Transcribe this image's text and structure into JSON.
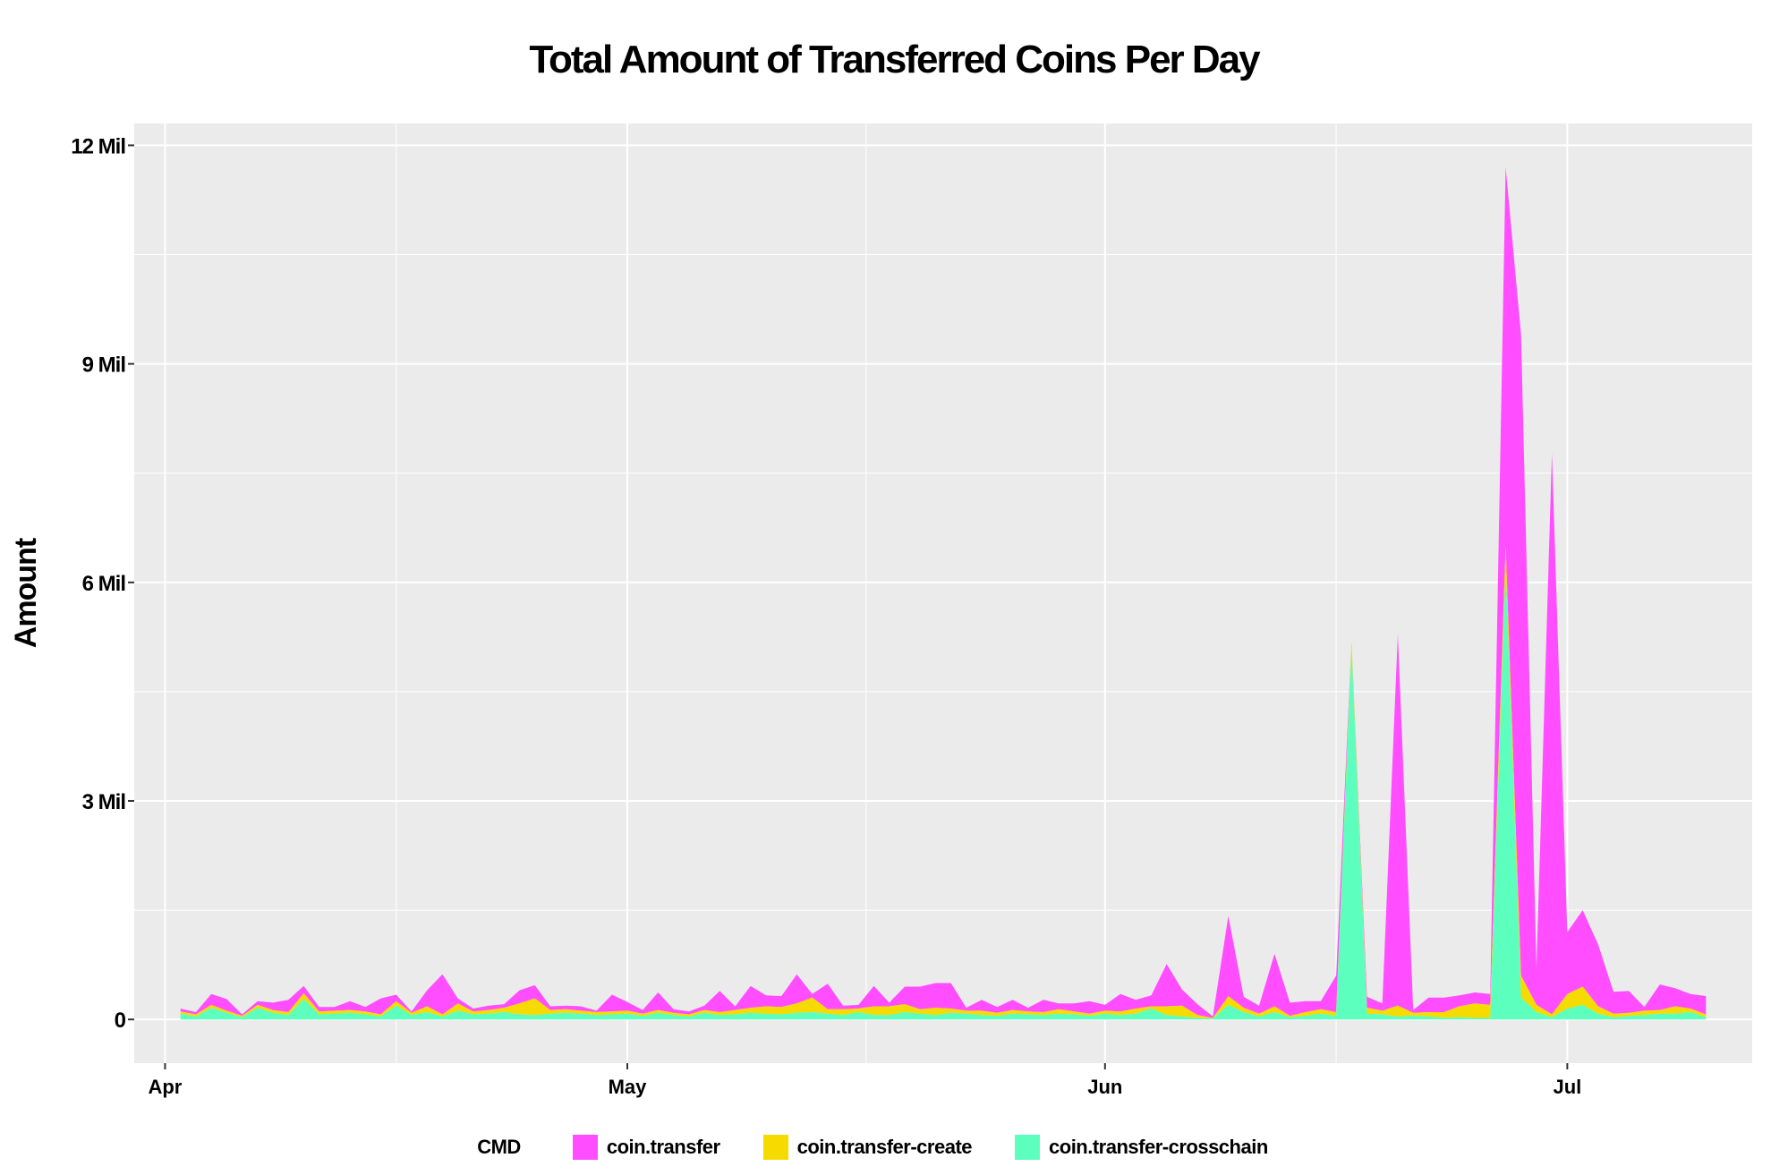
{
  "chart_data": {
    "type": "area",
    "stacked": true,
    "title": "Total Amount of Transferred Coins Per Day",
    "xlabel": "",
    "ylabel": "Amount",
    "x_tick_labels": [
      "Apr",
      "May",
      "Jun",
      "Jul"
    ],
    "x_tick_dates": [
      "2023-04-01",
      "2023-05-01",
      "2023-06-01",
      "2023-07-01"
    ],
    "x_range": [
      "2023-03-30",
      "2023-07-13"
    ],
    "y_tick_labels": [
      "0",
      "3 Mil",
      "6 Mil",
      "9 Mil",
      "12 Mil"
    ],
    "y_tick_values": [
      0,
      3000000,
      6000000,
      9000000,
      12000000
    ],
    "ylim": [
      -600000,
      12300000
    ],
    "grid": true,
    "legend_position": "bottom",
    "legend_title": "CMD",
    "x": [
      "2023-04-02",
      "2023-04-03",
      "2023-04-04",
      "2023-04-05",
      "2023-04-06",
      "2023-04-07",
      "2023-04-08",
      "2023-04-09",
      "2023-04-10",
      "2023-04-11",
      "2023-04-12",
      "2023-04-13",
      "2023-04-14",
      "2023-04-15",
      "2023-04-16",
      "2023-04-17",
      "2023-04-18",
      "2023-04-19",
      "2023-04-20",
      "2023-04-21",
      "2023-04-22",
      "2023-04-23",
      "2023-04-24",
      "2023-04-25",
      "2023-04-26",
      "2023-04-27",
      "2023-04-28",
      "2023-04-29",
      "2023-04-30",
      "2023-05-01",
      "2023-05-02",
      "2023-05-03",
      "2023-05-04",
      "2023-05-05",
      "2023-05-06",
      "2023-05-07",
      "2023-05-08",
      "2023-05-09",
      "2023-05-10",
      "2023-05-11",
      "2023-05-12",
      "2023-05-13",
      "2023-05-14",
      "2023-05-15",
      "2023-05-16",
      "2023-05-17",
      "2023-05-18",
      "2023-05-19",
      "2023-05-20",
      "2023-05-21",
      "2023-05-22",
      "2023-05-23",
      "2023-05-24",
      "2023-05-25",
      "2023-05-26",
      "2023-05-27",
      "2023-05-28",
      "2023-05-29",
      "2023-05-30",
      "2023-05-31",
      "2023-06-01",
      "2023-06-02",
      "2023-06-03",
      "2023-06-04",
      "2023-06-05",
      "2023-06-06",
      "2023-06-07",
      "2023-06-08",
      "2023-06-09",
      "2023-06-10",
      "2023-06-11",
      "2023-06-12",
      "2023-06-13",
      "2023-06-14",
      "2023-06-15",
      "2023-06-16",
      "2023-06-17",
      "2023-06-18",
      "2023-06-19",
      "2023-06-20",
      "2023-06-21",
      "2023-06-22",
      "2023-06-23",
      "2023-06-24",
      "2023-06-25",
      "2023-06-26",
      "2023-06-27",
      "2023-06-28",
      "2023-06-29",
      "2023-06-30",
      "2023-07-01",
      "2023-07-02",
      "2023-07-03",
      "2023-07-04",
      "2023-07-05",
      "2023-07-06",
      "2023-07-07",
      "2023-07-08",
      "2023-07-09",
      "2023-07-10"
    ],
    "series": [
      {
        "name": "coin.transfer-crosschain",
        "color": "#5CFFBE",
        "values": [
          80000,
          40000,
          160000,
          90000,
          30000,
          160000,
          90000,
          60000,
          280000,
          70000,
          80000,
          90000,
          70000,
          40000,
          190000,
          60000,
          100000,
          40000,
          120000,
          70000,
          80000,
          100000,
          70000,
          60000,
          80000,
          90000,
          80000,
          60000,
          70000,
          80000,
          50000,
          90000,
          60000,
          40000,
          90000,
          60000,
          70000,
          90000,
          80000,
          70000,
          90000,
          100000,
          80000,
          60000,
          100000,
          60000,
          60000,
          100000,
          80000,
          60000,
          90000,
          80000,
          60000,
          50000,
          80000,
          70000,
          60000,
          80000,
          70000,
          50000,
          80000,
          60000,
          80000,
          150000,
          60000,
          40000,
          20000,
          10000,
          200000,
          100000,
          40000,
          100000,
          30000,
          50000,
          80000,
          50000,
          5100000,
          80000,
          70000,
          40000,
          50000,
          40000,
          20000,
          30000,
          20000,
          20000,
          6200000,
          300000,
          100000,
          30000,
          150000,
          200000,
          80000,
          30000,
          50000,
          60000,
          80000,
          80000,
          100000,
          30000
        ]
      },
      {
        "name": "coin.transfer-create",
        "color": "#F5DB00",
        "values": [
          30000,
          30000,
          40000,
          30000,
          20000,
          40000,
          40000,
          40000,
          80000,
          40000,
          40000,
          40000,
          40000,
          30000,
          60000,
          30000,
          80000,
          30000,
          100000,
          40000,
          50000,
          60000,
          150000,
          230000,
          50000,
          50000,
          40000,
          40000,
          40000,
          40000,
          30000,
          40000,
          30000,
          30000,
          40000,
          40000,
          60000,
          70000,
          100000,
          100000,
          130000,
          200000,
          60000,
          80000,
          50000,
          120000,
          120000,
          110000,
          60000,
          100000,
          60000,
          40000,
          60000,
          40000,
          50000,
          40000,
          40000,
          60000,
          40000,
          30000,
          40000,
          50000,
          70000,
          30000,
          120000,
          150000,
          40000,
          10000,
          120000,
          60000,
          40000,
          80000,
          20000,
          50000,
          60000,
          50000,
          100000,
          80000,
          50000,
          150000,
          40000,
          60000,
          80000,
          150000,
          200000,
          180000,
          300000,
          300000,
          100000,
          40000,
          200000,
          250000,
          100000,
          50000,
          40000,
          60000,
          50000,
          100000,
          50000,
          40000
        ]
      },
      {
        "name": "coin.transfer",
        "color": "#FF4DFF",
        "values": [
          40000,
          30000,
          150000,
          160000,
          20000,
          50000,
          100000,
          170000,
          100000,
          60000,
          50000,
          120000,
          60000,
          220000,
          90000,
          20000,
          220000,
          550000,
          70000,
          40000,
          60000,
          50000,
          180000,
          180000,
          50000,
          50000,
          60000,
          20000,
          230000,
          120000,
          50000,
          240000,
          50000,
          40000,
          60000,
          290000,
          50000,
          300000,
          150000,
          150000,
          400000,
          50000,
          350000,
          50000,
          50000,
          280000,
          50000,
          240000,
          310000,
          340000,
          350000,
          40000,
          150000,
          80000,
          140000,
          50000,
          170000,
          80000,
          110000,
          170000,
          80000,
          240000,
          120000,
          150000,
          580000,
          220000,
          150000,
          20000,
          1100000,
          150000,
          110000,
          720000,
          180000,
          150000,
          110000,
          500000,
          0,
          150000,
          100000,
          5100000,
          40000,
          200000,
          200000,
          150000,
          150000,
          150000,
          5200000,
          8800000,
          500000,
          7700000,
          850000,
          1050000,
          850000,
          300000,
          300000,
          50000,
          350000,
          250000,
          200000,
          250000
        ]
      }
    ]
  }
}
